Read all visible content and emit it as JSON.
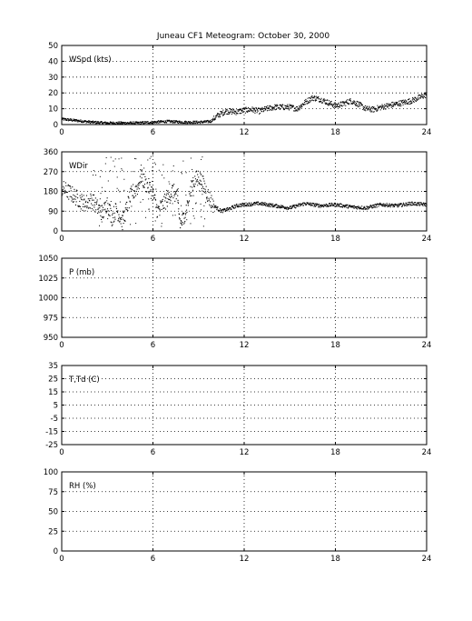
{
  "title": "Juneau CF1 Meteogram:    October 30, 2000",
  "x_ticks": [
    "0",
    "6",
    "12",
    "18",
    "24"
  ],
  "chart_data": [
    {
      "type": "scatter",
      "label": "WSpd (kts)",
      "xlim": [
        0,
        24
      ],
      "ylim": [
        0,
        50
      ],
      "y_ticks": [
        "0",
        "10",
        "20",
        "30",
        "40",
        "50"
      ],
      "grid": true,
      "keypoints": [
        [
          0,
          3.5
        ],
        [
          1,
          2.5
        ],
        [
          2,
          1.5
        ],
        [
          3,
          1
        ],
        [
          4,
          1
        ],
        [
          5,
          1
        ],
        [
          6,
          1.5
        ],
        [
          7,
          2
        ],
        [
          8,
          1.5
        ],
        [
          9,
          1.5
        ],
        [
          9.8,
          2
        ],
        [
          10.3,
          6
        ],
        [
          10.8,
          8.5
        ],
        [
          11.5,
          8
        ],
        [
          12,
          9
        ],
        [
          12.5,
          9.5
        ],
        [
          13,
          8.5
        ],
        [
          13.5,
          10
        ],
        [
          14,
          11
        ],
        [
          15,
          11
        ],
        [
          15.5,
          10
        ],
        [
          16,
          14
        ],
        [
          16.5,
          17
        ],
        [
          17,
          16
        ],
        [
          17.5,
          14
        ],
        [
          18,
          12
        ],
        [
          18.5,
          13
        ],
        [
          19,
          15
        ],
        [
          19.5,
          13
        ],
        [
          20,
          10
        ],
        [
          20.5,
          9.5
        ],
        [
          21,
          11
        ],
        [
          22,
          13
        ],
        [
          23,
          15
        ],
        [
          24,
          19
        ]
      ]
    },
    {
      "type": "scatter",
      "label": "WDir",
      "xlim": [
        0,
        24
      ],
      "ylim": [
        0,
        360
      ],
      "y_ticks": [
        "0",
        "90",
        "180",
        "270",
        "360"
      ],
      "grid": true,
      "keypoints": [
        [
          0,
          195
        ],
        [
          0.5,
          175
        ],
        [
          1,
          150
        ],
        [
          1.5,
          125
        ],
        [
          2,
          140
        ],
        [
          2.3,
          110
        ],
        [
          2.7,
          80
        ],
        [
          3,
          130
        ],
        [
          3.3,
          60
        ],
        [
          3.6,
          100
        ],
        [
          4,
          40
        ],
        [
          4.3,
          110
        ],
        [
          4.6,
          170
        ],
        [
          5,
          200
        ],
        [
          5.2,
          250
        ],
        [
          5.5,
          215
        ],
        [
          5.8,
          195
        ],
        [
          6,
          170
        ],
        [
          6.3,
          90
        ],
        [
          6.6,
          115
        ],
        [
          7,
          150
        ],
        [
          7.3,
          185
        ],
        [
          7.6,
          150
        ],
        [
          7.8,
          30
        ],
        [
          8,
          55
        ],
        [
          8.3,
          130
        ],
        [
          8.6,
          215
        ],
        [
          9,
          250
        ],
        [
          9.4,
          200
        ],
        [
          9.7,
          150
        ],
        [
          10,
          115
        ],
        [
          10.5,
          90
        ],
        [
          11,
          100
        ],
        [
          11.5,
          115
        ],
        [
          12,
          120
        ],
        [
          13,
          125
        ],
        [
          14,
          115
        ],
        [
          15,
          105
        ],
        [
          16,
          125
        ],
        [
          17,
          115
        ],
        [
          18,
          120
        ],
        [
          19,
          110
        ],
        [
          20,
          105
        ],
        [
          21,
          120
        ],
        [
          22,
          115
        ],
        [
          23,
          125
        ],
        [
          24,
          120
        ]
      ]
    },
    {
      "type": "line",
      "label": "P (mb)",
      "xlim": [
        0,
        24
      ],
      "ylim": [
        950,
        1050
      ],
      "y_ticks": [
        "950",
        "975",
        "1000",
        "1025",
        "1050"
      ],
      "grid": true,
      "keypoints": []
    },
    {
      "type": "line",
      "label": "T,Td (C)",
      "xlim": [
        0,
        24
      ],
      "ylim": [
        -25,
        35
      ],
      "y_ticks": [
        "-25",
        "-15",
        "-5",
        "5",
        "15",
        "25",
        "35"
      ],
      "grid": true,
      "keypoints": []
    },
    {
      "type": "line",
      "label": "RH (%)",
      "xlim": [
        0,
        24
      ],
      "ylim": [
        0,
        100
      ],
      "y_ticks": [
        "0",
        "25",
        "50",
        "75",
        "100"
      ],
      "grid": true,
      "keypoints": []
    }
  ]
}
